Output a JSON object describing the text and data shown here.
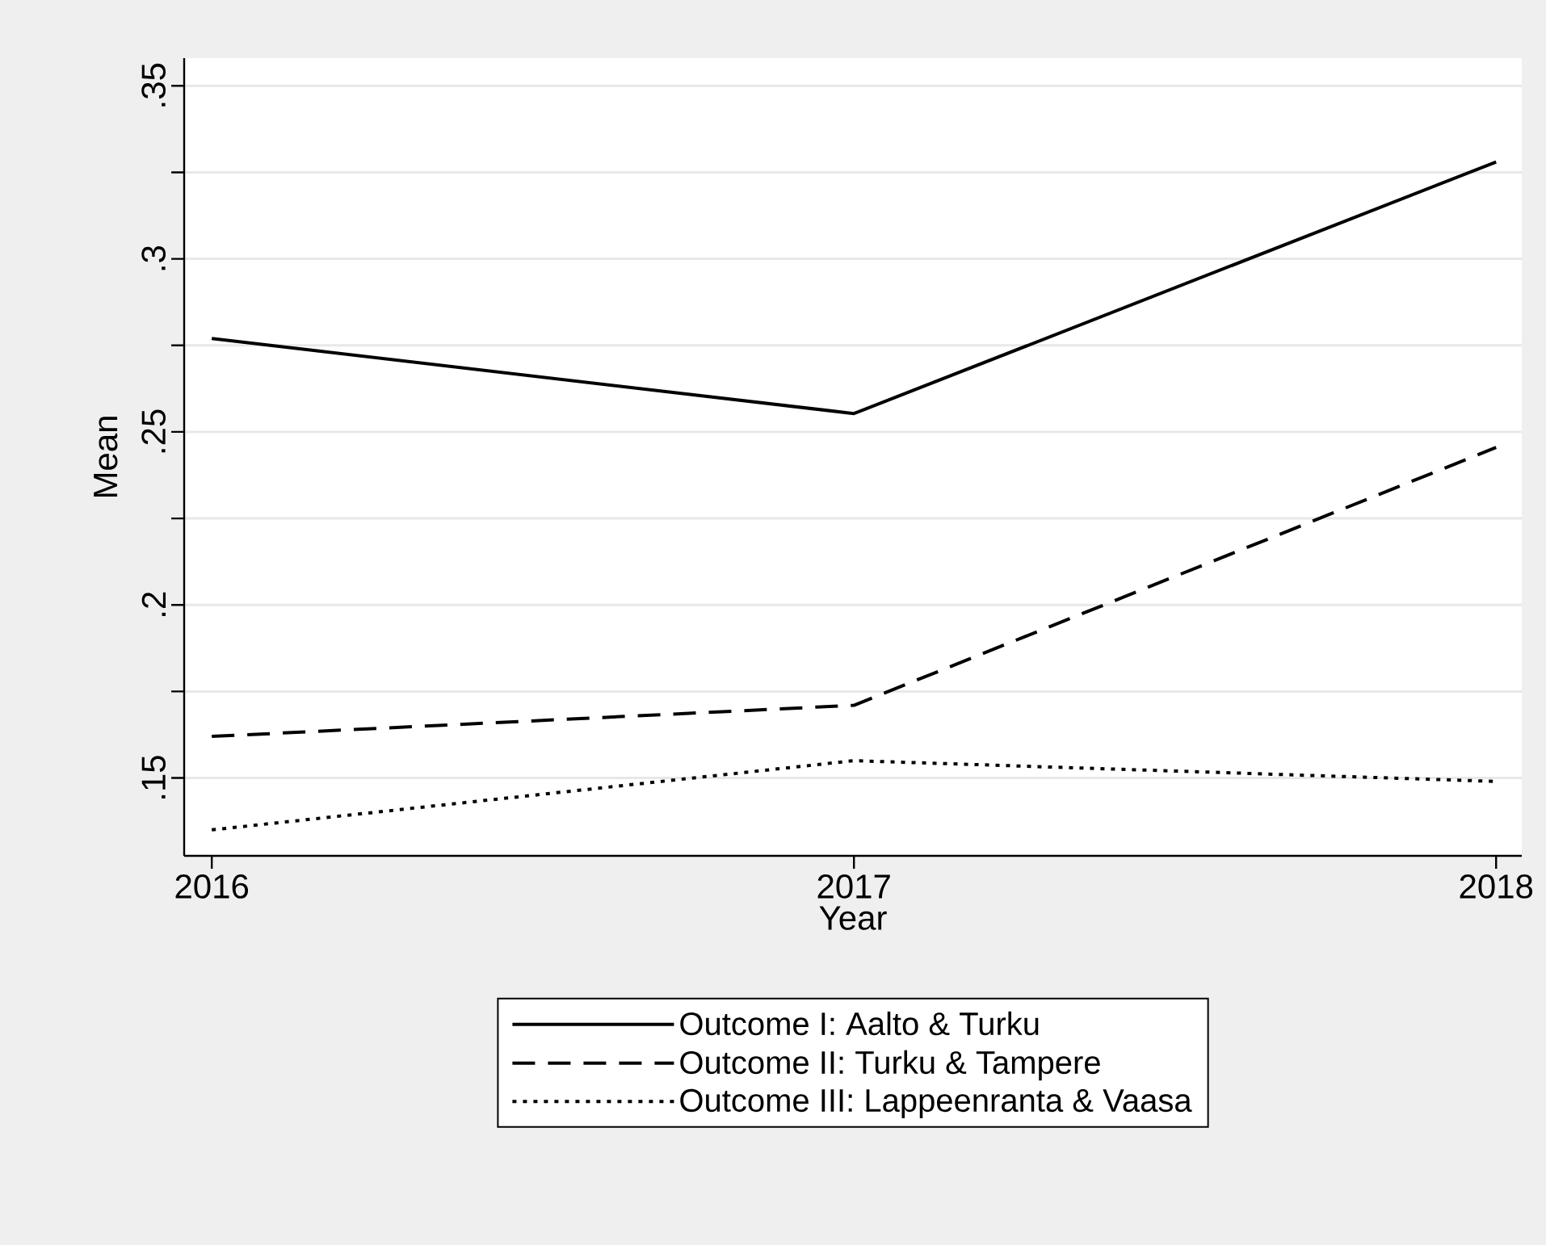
{
  "chart_data": {
    "type": "line",
    "xlabel": "Year",
    "ylabel": "Mean",
    "x": [
      2016,
      2017,
      2018
    ],
    "series": [
      {
        "name": "Outcome I: Aalto & Turku",
        "color": "#000000",
        "line_style": "solid",
        "values": [
          0.277,
          0.2553,
          0.328
        ]
      },
      {
        "name": "Outcome II: Turku & Tampere",
        "color": "#000000",
        "line_style": "dashed",
        "values": [
          0.162,
          0.171,
          0.2455
        ]
      },
      {
        "name": "Outcome III: Lappeenranta & Vaasa",
        "color": "#000000",
        "line_style": "dotted",
        "values": [
          0.135,
          0.155,
          0.149
        ]
      }
    ],
    "xlim": [
      2015.957,
      2018.04
    ],
    "ylim": [
      0.1275,
      0.358
    ],
    "xticks": [
      2016,
      2017,
      2018
    ],
    "yticks": [
      {
        "value": 0.15,
        "label": ".15"
      },
      {
        "value": 0.175,
        "label": null
      },
      {
        "value": 0.2,
        "label": ".2"
      },
      {
        "value": 0.225,
        "label": null
      },
      {
        "value": 0.25,
        "label": ".25"
      },
      {
        "value": 0.275,
        "label": null
      },
      {
        "value": 0.3,
        "label": ".3"
      },
      {
        "value": 0.325,
        "label": null
      },
      {
        "value": 0.35,
        "label": ".35"
      }
    ],
    "grid": "y",
    "legend": "bottom",
    "marker": "none"
  }
}
